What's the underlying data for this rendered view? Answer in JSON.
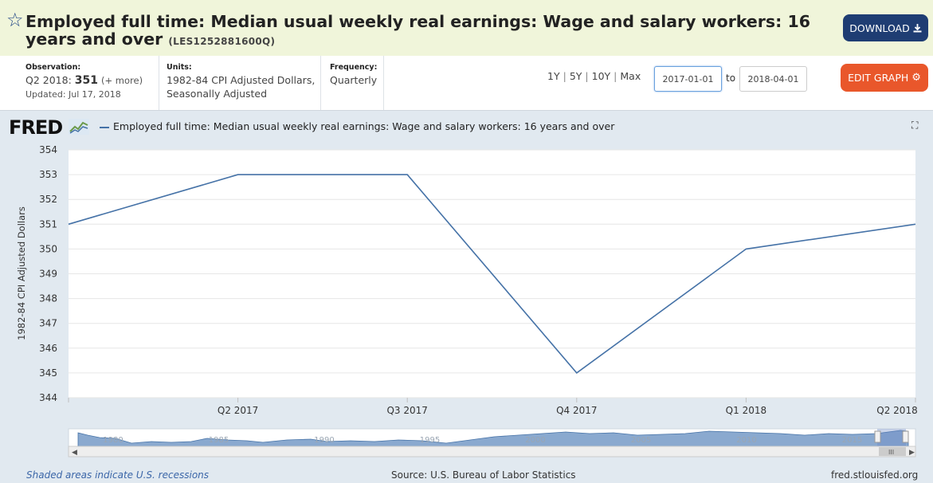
{
  "header": {
    "title": "Employed full time: Median usual weekly real earnings: Wage and salary workers: 16 years and over",
    "series_id": "(LES1252881600Q)",
    "download_label": "DOWNLOAD",
    "download_icon": "download-icon",
    "star_icon": "star-icon"
  },
  "info": {
    "observation_label": "Observation:",
    "observation_period": "Q2 2018:",
    "observation_value": "351",
    "observation_more": "(+ more)",
    "updated": "Updated: Jul 17, 2018",
    "units_label": "Units:",
    "units_line1": "1982-84 CPI Adjusted Dollars,",
    "units_line2": "Seasonally Adjusted",
    "frequency_label": "Frequency:",
    "frequency_value": "Quarterly"
  },
  "controls": {
    "range_1y": "1Y",
    "range_5y": "5Y",
    "range_10y": "10Y",
    "range_max": "Max",
    "date_start": "2017-01-01",
    "date_to": "to",
    "date_end": "2018-04-01",
    "edit_graph_label": "EDIT GRAPH",
    "edit_icon": "gear-icon"
  },
  "branding": {
    "logo": "FRED"
  },
  "chart_data": {
    "type": "line",
    "legend_label": "Employed full time: Median usual weekly real earnings: Wage and salary workers: 16 years and over",
    "ylabel": "1982-84 CPI Adjusted Dollars",
    "ylim": [
      344,
      354
    ],
    "yticks": [
      344,
      345,
      346,
      347,
      348,
      349,
      350,
      351,
      352,
      353,
      354
    ],
    "x": [
      "Q1 2017",
      "Q2 2017",
      "Q3 2017",
      "Q4 2017",
      "Q1 2018",
      "Q2 2018"
    ],
    "xtick_labels": [
      "",
      "Q2 2017",
      "Q3 2017",
      "Q4 2017",
      "Q1 2018",
      "Q2 2018"
    ],
    "series": [
      {
        "values": [
          351,
          353,
          353,
          345,
          350,
          351
        ],
        "color": "#4572a7"
      }
    ],
    "grid": true,
    "navigator_labels": [
      "1980",
      "1985",
      "1990",
      "1995",
      "2000",
      "2005",
      "2010",
      "2015"
    ]
  },
  "footer": {
    "recession_note": "Shaded areas indicate U.S. recessions",
    "source": "Source: U.S. Bureau of Labor Statistics",
    "site": "fred.stlouisfed.org"
  }
}
